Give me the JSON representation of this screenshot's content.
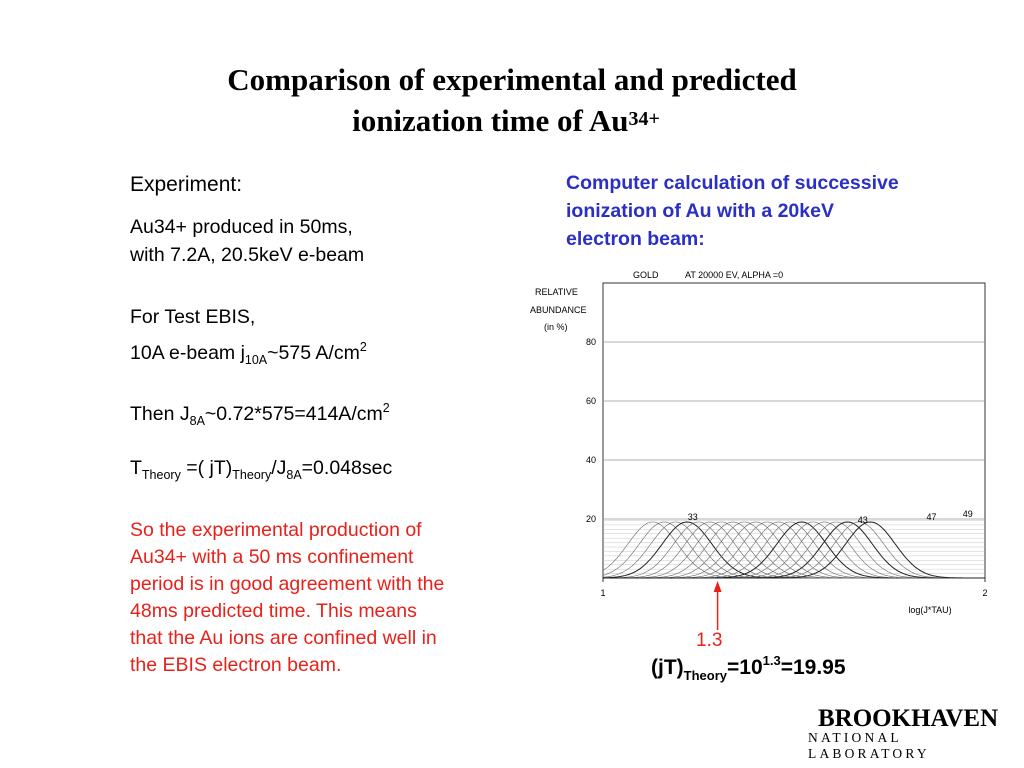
{
  "slide": {
    "title_line1": "Comparison of experimental and predicted",
    "title_line2": "ionization time of Au",
    "title_sup": "34+"
  },
  "left": {
    "heading": "Experiment:",
    "line1": "Au34+ produced in 50ms,",
    "line2": "with 7.2A, 20.5keV e-beam",
    "line3": "For Test EBIS,",
    "line4_a": "10A e-beam j",
    "line4_sub": "10A",
    "line4_b": "~575 A/cm",
    "line4_sup": "2",
    "line5_a": "Then J",
    "line5_sub": "8A",
    "line5_b": "~0.72*575=414A/cm",
    "line5_sup": "2",
    "line6_a": "T",
    "line6_sub1": "Theory",
    "line6_b": " =( jT)",
    "line6_sub2": "Theory",
    "line6_c": "/J",
    "line6_sub3": "8A",
    "line6_d": "=0.048sec",
    "conclusion": [
      "So the experimental production of",
      "Au34+ with a 50 ms confinement",
      "period is in good agreement with the",
      "48ms predicted time.  This means",
      "that the Au ions are confined well in",
      "the EBIS electron beam."
    ]
  },
  "right": {
    "caption": [
      "Computer calculation of successive",
      "ionization of Au with a 20keV",
      "electron beam:"
    ],
    "arrow_label": "1.3",
    "formula_a": "(jT)",
    "formula_sub": "Theory",
    "formula_b": "=10",
    "formula_sup": "1.3",
    "formula_c": "=19.95"
  },
  "logo": {
    "line1": "BROOKHAVEN",
    "line2": "NATIONAL LABORATORY"
  },
  "colors": {
    "red": "#e8211a",
    "blue": "#2a2fc6"
  },
  "chart_data": {
    "type": "line",
    "header_left": "GOLD",
    "header_right": "AT 20000 EV, ALPHA =0",
    "ylabel": [
      "RELATIVE",
      "ABUNDANCE",
      "(in %)"
    ],
    "xlabel": "log(J*TAU)",
    "xlim": [
      1,
      2
    ],
    "ylim": [
      0,
      100
    ],
    "yticks": [
      20,
      40,
      60,
      80
    ],
    "xticks": [
      1,
      2
    ],
    "grid": "horizontal",
    "peak_height": 19,
    "peak_width": 0.065,
    "peak_spacing": 0.03,
    "first_peak_charge": 30,
    "last_peak_charge": 49,
    "first_peak_x": 1.13,
    "labeled_peaks": [
      {
        "label": "33",
        "x": 1.235,
        "y": 19
      },
      {
        "label": "43",
        "x": 1.68,
        "y": 18
      },
      {
        "label": "47",
        "x": 1.86,
        "y": 19
      },
      {
        "label": "49",
        "x": 1.955,
        "y": 20
      }
    ],
    "marker_x": 1.3
  }
}
